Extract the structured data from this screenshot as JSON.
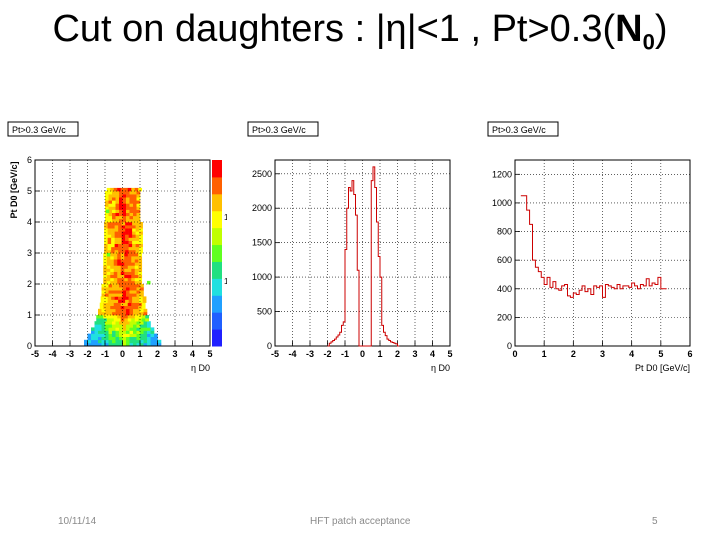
{
  "slide": {
    "title_text": "Cut on daughters : |η|<1 , Pt>0.3(",
    "title_bold": "N",
    "title_sub": "0",
    "title_end": ")",
    "footer_date": "10/11/14",
    "footer_center": "HFT patch acceptance",
    "footer_page": "5"
  },
  "chart_data": [
    {
      "type": "heatmap",
      "title": "Pt>0.3 GeV/c",
      "xlabel": "η D0",
      "ylabel": "Pt D0 [GeV/c]",
      "xlim": [
        -5,
        5
      ],
      "ylim": [
        0,
        6
      ],
      "xticks": [
        "-5",
        "-4",
        "-3",
        "-2",
        "-1",
        "0",
        "1",
        "2",
        "3",
        "4",
        "5"
      ],
      "yticks": [
        "0",
        "1",
        "2",
        "3",
        "4",
        "5",
        "6"
      ],
      "zticks": [
        "1",
        "10"
      ],
      "colorscale": [
        "#2020ff",
        "#2060ff",
        "#20a0ff",
        "#20e0e0",
        "#20e080",
        "#60ff20",
        "#c0ff00",
        "#ffff00",
        "#ffc000",
        "#ff6000",
        "#ff0000"
      ],
      "y_bin": 0.1,
      "bins": [
        [
          0.0,
          0.2,
          -2.2,
          2.2
        ],
        [
          0.2,
          0.4,
          -2.0,
          2.0
        ],
        [
          0.4,
          0.6,
          -1.8,
          1.8
        ],
        [
          0.6,
          0.8,
          -1.6,
          1.6
        ],
        [
          0.8,
          1.0,
          -1.5,
          1.5
        ],
        [
          1.0,
          1.2,
          -1.4,
          1.4
        ],
        [
          1.2,
          1.4,
          -1.3,
          1.3
        ],
        [
          1.4,
          1.6,
          -1.25,
          1.25
        ],
        [
          1.6,
          2.0,
          -1.2,
          1.2
        ],
        [
          2.0,
          3.0,
          -1.1,
          1.1
        ],
        [
          3.0,
          4.0,
          -1.05,
          1.05
        ],
        [
          4.0,
          5.0,
          -1.0,
          1.0
        ],
        [
          5.0,
          5.1,
          -0.9,
          1.0
        ]
      ],
      "outliers": [
        [
          -0.95,
          4.3
        ],
        [
          1.4,
          2.0
        ],
        [
          -0.9,
          2.9
        ]
      ]
    },
    {
      "type": "line",
      "title": "Pt>0.3 GeV/c",
      "xlabel": "η D0",
      "xlim": [
        -5,
        5
      ],
      "ylim": [
        0,
        2700
      ],
      "xticks": [
        "-5",
        "-4",
        "-3",
        "-2",
        "-1",
        "0",
        "1",
        "2",
        "3",
        "4",
        "5"
      ],
      "yticks": [
        "0",
        "500",
        "1000",
        "1500",
        "2000",
        "2500"
      ],
      "x": [
        -2.0,
        -1.9,
        -1.8,
        -1.7,
        -1.6,
        -1.5,
        -1.4,
        -1.3,
        -1.2,
        -1.1,
        -1.0,
        -0.9,
        -0.8,
        -0.7,
        -0.6,
        -0.5,
        -0.4,
        -0.3,
        -0.2,
        -0.1,
        0.0,
        0.1,
        0.2,
        0.3,
        0.4,
        0.5,
        0.6,
        0.7,
        0.8,
        0.9,
        1.0,
        1.1,
        1.2,
        1.3,
        1.4,
        1.5,
        1.6,
        1.7,
        1.8,
        1.9,
        2.0
      ],
      "values": [
        0,
        40,
        60,
        80,
        100,
        130,
        160,
        200,
        300,
        350,
        1400,
        2000,
        2300,
        2250,
        2400,
        2200,
        1900,
        1100,
        0,
        0,
        0,
        0,
        0,
        0,
        0,
        2400,
        2600,
        2300,
        1800,
        1300,
        1000,
        300,
        200,
        150,
        100,
        80,
        60,
        50,
        40,
        30,
        0
      ]
    },
    {
      "type": "line",
      "title": "Pt>0.3 GeV/c",
      "xlabel": "Pt D0 [GeV/c]",
      "xlim": [
        0,
        6
      ],
      "ylim": [
        0,
        1300
      ],
      "xticks": [
        "0",
        "1",
        "2",
        "3",
        "4",
        "5",
        "6"
      ],
      "yticks": [
        "0",
        "200",
        "400",
        "600",
        "800",
        "1000",
        "1200"
      ],
      "x": [
        0.2,
        0.4,
        0.5,
        0.6,
        0.7,
        0.8,
        0.9,
        1.0,
        1.1,
        1.2,
        1.3,
        1.4,
        1.5,
        1.6,
        1.7,
        1.8,
        1.9,
        2.0,
        2.1,
        2.2,
        2.3,
        2.4,
        2.5,
        2.6,
        2.7,
        2.8,
        2.9,
        3.0,
        3.1,
        3.2,
        3.3,
        3.4,
        3.5,
        3.6,
        3.7,
        3.8,
        3.9,
        4.0,
        4.1,
        4.2,
        4.3,
        4.4,
        4.5,
        4.6,
        4.7,
        4.8,
        4.9,
        5.0
      ],
      "values": [
        1050,
        950,
        850,
        600,
        550,
        520,
        480,
        430,
        480,
        410,
        450,
        400,
        390,
        420,
        430,
        350,
        340,
        370,
        360,
        390,
        420,
        380,
        400,
        360,
        420,
        410,
        420,
        340,
        430,
        420,
        410,
        400,
        430,
        400,
        420,
        420,
        410,
        440,
        420,
        400,
        430,
        420,
        470,
        420,
        440,
        430,
        480,
        400
      ]
    }
  ]
}
